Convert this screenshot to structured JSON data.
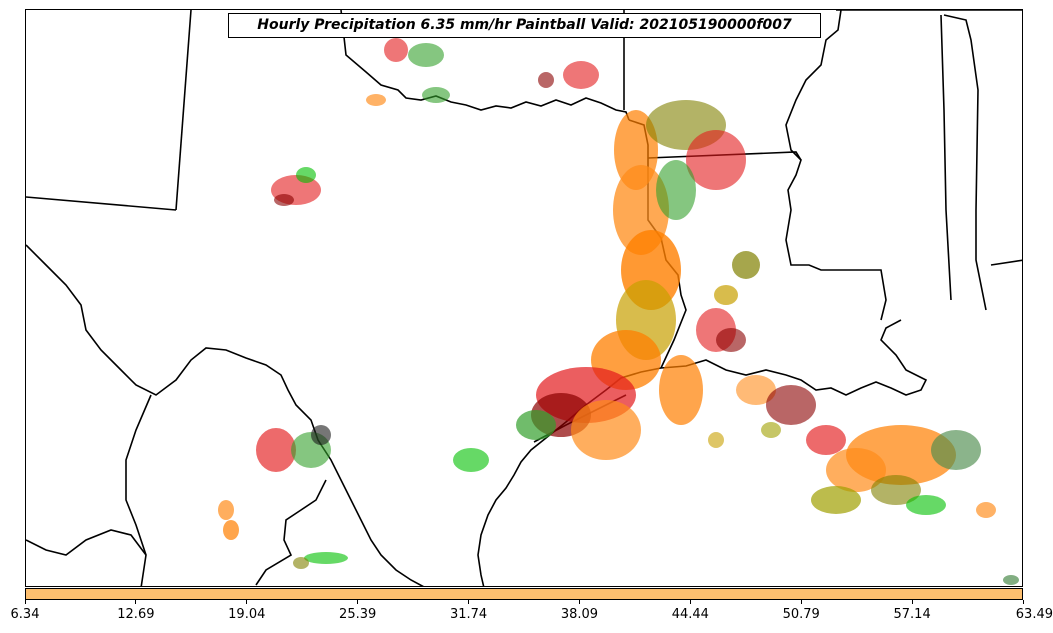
{
  "title": "Hourly Precipitation 6.35 mm/hr Paintball Valid: 202105190000f007",
  "colorbar": {
    "fill_color": "#fdbf6f",
    "ticks": [
      "6.34",
      "12.69",
      "19.04",
      "25.39",
      "31.74",
      "38.09",
      "44.44",
      "50.79",
      "57.14",
      "63.49"
    ]
  },
  "member_colors": [
    "#e31a1c",
    "#ff7f00",
    "#b15928",
    "#8b0000",
    "#33a02c",
    "#00c000",
    "#808000",
    "#a0a000",
    "#ff8c1a",
    "#1a1a1a",
    "#4d8c4d",
    "#c8a000"
  ]
}
